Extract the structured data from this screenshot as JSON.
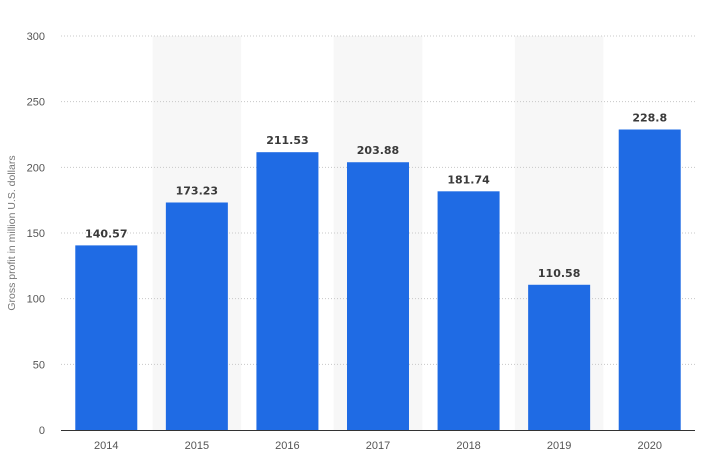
{
  "chart_data": {
    "type": "bar",
    "title": "",
    "xlabel": "",
    "ylabel": "Gross profit in million U.S. dollars",
    "categories": [
      "2014",
      "2015",
      "2016",
      "2017",
      "2018",
      "2019",
      "2020"
    ],
    "values": [
      140.57,
      173.23,
      211.53,
      203.88,
      181.74,
      110.58,
      228.8
    ],
    "value_labels": [
      "140.57",
      "173.23",
      "211.53",
      "203.88",
      "181.74",
      "110.58",
      "228.8"
    ],
    "ylim": [
      0,
      300
    ],
    "yticks": [
      0,
      50,
      100,
      150,
      200,
      250,
      300
    ],
    "ytick_labels": [
      "0",
      "50",
      "100",
      "150",
      "200",
      "250",
      "300"
    ],
    "grid": "horizontal-dotted",
    "legend": "none",
    "colors": {
      "bar": "#1f6be4",
      "band": "#f7f7f7",
      "grid": "#c8c8c8",
      "axis": "#333333"
    }
  }
}
